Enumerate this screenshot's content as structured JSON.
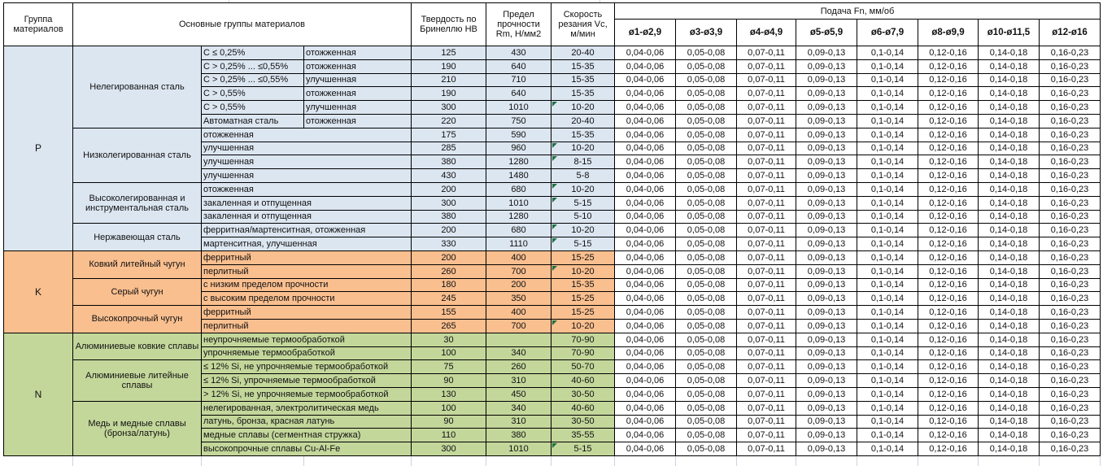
{
  "header": {
    "group_col": "Группа материалов",
    "main_groups_col": "Основные группы материалов",
    "hardness_col": "Твердость по Бринеллю HB",
    "strength_col": "Предел прочности Rm, Н/мм2",
    "speed_col": "Скорость резания Vc, м/мин",
    "feed_col": "Подача Fn, мм/об",
    "feed_subcols": [
      "ø1-ø2,9",
      "ø3-ø3,9",
      "ø4-ø4,9",
      "ø5-ø5,9",
      "ø6-ø7,9",
      "ø8-ø9,9",
      "ø10-ø11,5",
      "ø12-ø16"
    ]
  },
  "feed_values": [
    "0,04-0,06",
    "0,05-0,08",
    "0,07-0,11",
    "0,09-0,13",
    "0,1-0,14",
    "0,12-0,16",
    "0,14-0,18",
    "0,16-0,23"
  ],
  "colors": {
    "group_P": "#dce6f1",
    "group_K": "#fabf8f",
    "group_N": "#c4d79b",
    "flag": "#1e7145",
    "border": "#000000"
  },
  "groups": [
    {
      "letter": "P",
      "sections": [
        {
          "name": "Нелегированная сталь",
          "split": true,
          "rows": [
            {
              "c1": "C ≤ 0,25%",
              "c2": "отожженная",
              "hb": "125",
              "rm": "430",
              "vc": "20-40",
              "flag": false
            },
            {
              "c1": "C > 0,25% ... ≤0,55%",
              "c2": "отожженная",
              "hb": "190",
              "rm": "640",
              "vc": "15-35",
              "flag": false
            },
            {
              "c1": "C > 0,25% ... ≤0,55%",
              "c2": "улучшенная",
              "hb": "210",
              "rm": "710",
              "vc": "15-35",
              "flag": false
            },
            {
              "c1": "C > 0,55%",
              "c2": "отожженная",
              "hb": "190",
              "rm": "640",
              "vc": "15-35",
              "flag": false
            },
            {
              "c1": "C > 0,55%",
              "c2": "улучшенная",
              "hb": "300",
              "rm": "1010",
              "vc": "10-20",
              "flag": true
            },
            {
              "c1": "Автоматная сталь",
              "c2": "отожженная",
              "hb": "220",
              "rm": "750",
              "vc": "20-40",
              "flag": false
            }
          ]
        },
        {
          "name": "Низколегированная сталь",
          "split": false,
          "rows": [
            {
              "desc": "отожженная",
              "hb": "175",
              "rm": "590",
              "vc": "15-35",
              "flag": false
            },
            {
              "desc": "улучшенная",
              "hb": "285",
              "rm": "960",
              "vc": "10-20",
              "flag": true
            },
            {
              "desc": "улучшенная",
              "hb": "380",
              "rm": "1280",
              "vc": "8-15",
              "flag": true
            },
            {
              "desc": "улучшенная",
              "hb": "430",
              "rm": "1480",
              "vc": "5-8",
              "flag": false
            }
          ]
        },
        {
          "name": "Высоколегированная и инструментальная сталь",
          "split": false,
          "rows": [
            {
              "desc": "отожженная",
              "hb": "200",
              "rm": "680",
              "vc": "10-20",
              "flag": true
            },
            {
              "desc": "закаленная и отпущенная",
              "hb": "300",
              "rm": "1010",
              "vc": "5-15",
              "flag": true
            },
            {
              "desc": "закаленная и отпущенная",
              "hb": "380",
              "rm": "1280",
              "vc": "5-10",
              "flag": false
            }
          ]
        },
        {
          "name": "Нержавеющая сталь",
          "split": false,
          "rows": [
            {
              "desc": "ферритная/мартенситная, отожженная",
              "hb": "200",
              "rm": "680",
              "vc": "10-20",
              "flag": true
            },
            {
              "desc": "мартенситная, улучшенная",
              "hb": "330",
              "rm": "1110",
              "vc": "5-15",
              "flag": true
            }
          ]
        }
      ]
    },
    {
      "letter": "K",
      "sections": [
        {
          "name": "Ковкий литейный чугун",
          "split": false,
          "rows": [
            {
              "desc": "ферритный",
              "hb": "200",
              "rm": "400",
              "vc": "15-25",
              "flag": false
            },
            {
              "desc": "перлитный",
              "hb": "260",
              "rm": "700",
              "vc": "10-20",
              "flag": true
            }
          ]
        },
        {
          "name": "Серый чугун",
          "split": false,
          "rows": [
            {
              "desc": "с низким пределом прочности",
              "hb": "180",
              "rm": "200",
              "vc": "15-35",
              "flag": false
            },
            {
              "desc": "с высоким пределом прочности",
              "hb": "245",
              "rm": "350",
              "vc": "15-25",
              "flag": false
            }
          ]
        },
        {
          "name": "Высокопрочный чугун",
          "split": false,
          "rows": [
            {
              "desc": "ферритный",
              "hb": "155",
              "rm": "400",
              "vc": "15-25",
              "flag": false
            },
            {
              "desc": "перлитный",
              "hb": "265",
              "rm": "700",
              "vc": "10-20",
              "flag": true
            }
          ]
        }
      ]
    },
    {
      "letter": "N",
      "sections": [
        {
          "name": "Алюминиевые ковкие сплавы",
          "split": false,
          "rows": [
            {
              "desc": "неупрочняемые термообработкой",
              "hb": "30",
              "rm": "",
              "vc": "70-90",
              "flag": false
            },
            {
              "desc": "упрочняемые термообработкой",
              "hb": "100",
              "rm": "340",
              "vc": "70-90",
              "flag": false
            }
          ]
        },
        {
          "name": "Алюминиевые литейные сплавы",
          "split": false,
          "rows": [
            {
              "desc": "≤ 12% Si, не упрочняемые термообработкой",
              "hb": "75",
              "rm": "260",
              "vc": "50-70",
              "flag": false
            },
            {
              "desc": "≤ 12% Si, упрочняемые термообработкой",
              "hb": "90",
              "rm": "310",
              "vc": "40-60",
              "flag": false
            },
            {
              "desc": "> 12% Si, не упрочняемые термообработкой",
              "hb": "130",
              "rm": "450",
              "vc": "30-50",
              "flag": false
            }
          ]
        },
        {
          "name": "Медь и медные сплавы (бронза/латунь)",
          "split": false,
          "rows": [
            {
              "desc": "нелегированная, электролитическая медь",
              "hb": "100",
              "rm": "340",
              "vc": "40-60",
              "flag": false
            },
            {
              "desc": "латунь, бронза, красная латунь",
              "hb": "90",
              "rm": "310",
              "vc": "30-50",
              "flag": false
            },
            {
              "desc": "медные сплавы (сегментная стружка)",
              "hb": "110",
              "rm": "380",
              "vc": "35-55",
              "flag": false
            },
            {
              "desc": "высокопрочные сплавы Cu-Al-Fe",
              "hb": "300",
              "rm": "1010",
              "vc": "5-15",
              "flag": true
            }
          ]
        }
      ]
    }
  ]
}
